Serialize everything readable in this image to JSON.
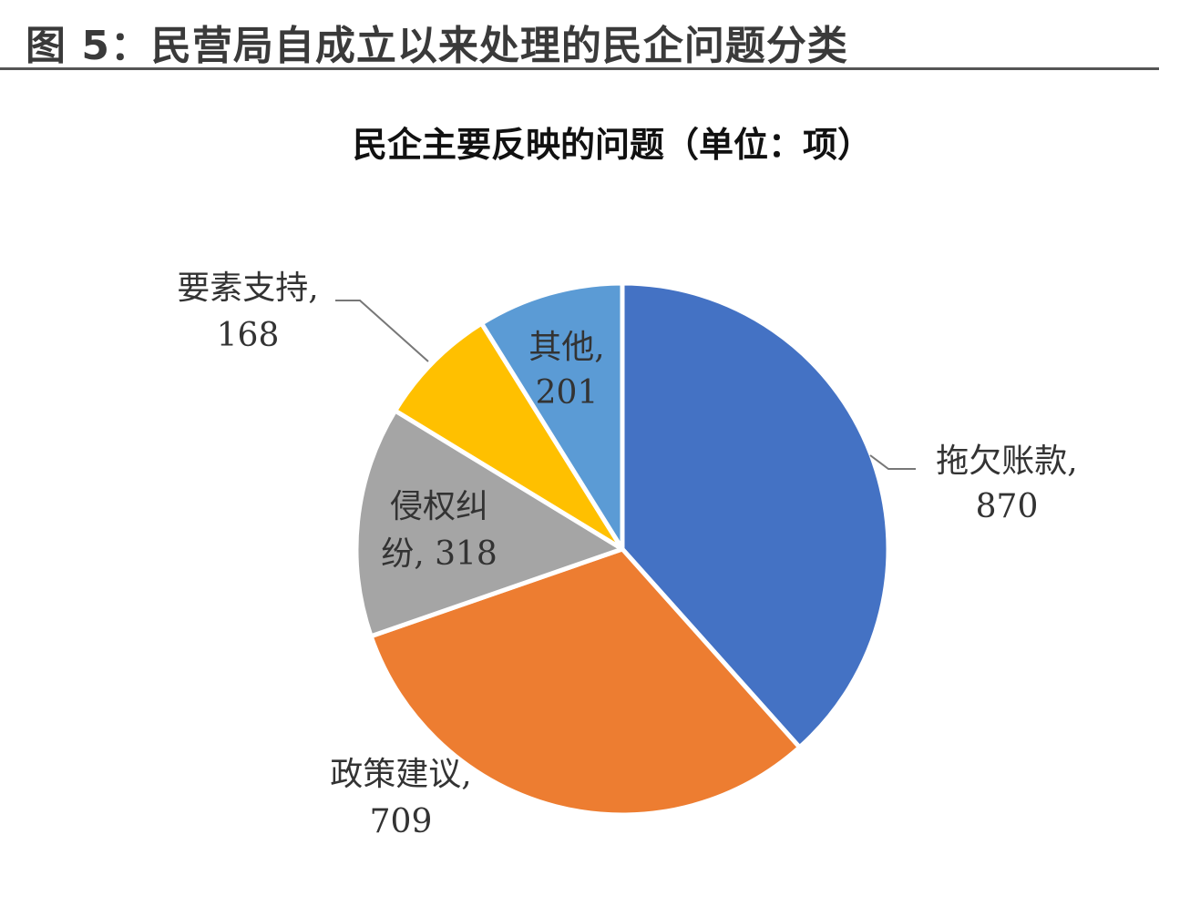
{
  "figure_title": "图 5：民营局自成立以来处理的民企问题分类",
  "chart_data": {
    "type": "pie",
    "title": "民企主要反映的问题（单位：项）",
    "start_angle": "12 o'clock, clockwise",
    "slices": [
      {
        "label": "拖欠账款",
        "value": 870,
        "color": "#4472C4",
        "label_lines": [
          "拖欠账款,",
          "870"
        ]
      },
      {
        "label": "政策建议",
        "value": 709,
        "color": "#ED7D31",
        "label_lines": [
          "政策建议,",
          "709"
        ]
      },
      {
        "label": "侵权纠纷",
        "value": 318,
        "color": "#A5A5A5",
        "label_lines": [
          "侵权纠",
          "纷, 318"
        ]
      },
      {
        "label": "要素支持",
        "value": 168,
        "color": "#FFC000",
        "label_lines": [
          "要素支持,",
          "168"
        ]
      },
      {
        "label": "其他",
        "value": 201,
        "color": "#5B9BD5",
        "label_lines": [
          "其他,",
          "201"
        ]
      }
    ]
  }
}
